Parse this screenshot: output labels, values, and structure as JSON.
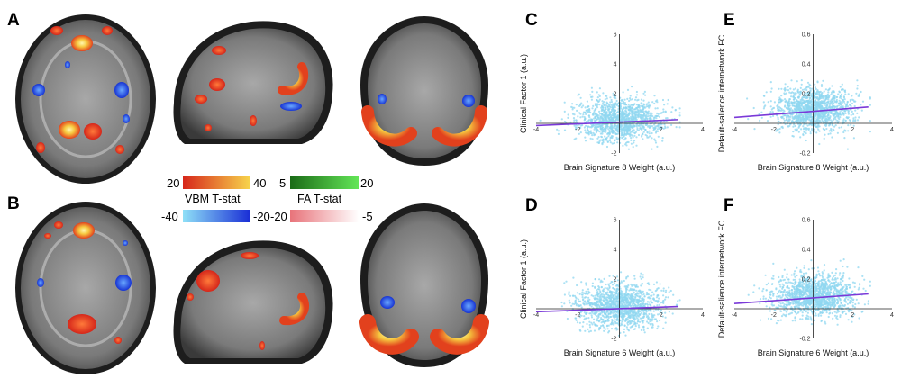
{
  "panels": {
    "A": "A",
    "B": "B",
    "C": "C",
    "D": "D",
    "E": "E",
    "F": "F"
  },
  "colorbars": {
    "vbm": {
      "title": "VBM T-stat",
      "pos_min": "20",
      "pos_max": "40",
      "neg_min": "-40",
      "neg_max": "-20",
      "pos_colors": [
        "#d7261b",
        "#f7d34b"
      ],
      "neg_colors": [
        "#8fe0f7",
        "#1a2fd6"
      ]
    },
    "fa": {
      "title": "FA T-stat",
      "pos_min": "5",
      "pos_max": "20",
      "neg_min": "-20",
      "neg_max": "-5",
      "pos_colors": [
        "#1b6b17",
        "#63e657"
      ],
      "neg_colors": [
        "#e8737a",
        "#ffffff"
      ]
    }
  },
  "chart_data": [
    {
      "id": "C",
      "type": "scatter",
      "xlabel": "Brain Signature 8 Weight (a.u.)",
      "ylabel": "Clinical Factor 1 (a.u.)",
      "xlim": [
        -4,
        4
      ],
      "ylim": [
        -2,
        6
      ],
      "xticks": [
        "-4",
        "-2",
        "2",
        "4"
      ],
      "yticks": [
        "-2",
        "2",
        "4",
        "6"
      ],
      "point_color": "#8fd7f0",
      "fit_color": "#7a39d8",
      "fit": {
        "x": [
          -4,
          2.8
        ],
        "y": [
          -0.15,
          0.25
        ]
      }
    },
    {
      "id": "E",
      "type": "scatter",
      "xlabel": "Brain Signature 8 Weight (a.u.)",
      "ylabel": "Default-salience internetwork FC",
      "xlim": [
        -4,
        4
      ],
      "ylim": [
        -0.2,
        0.6
      ],
      "xticks": [
        "-4",
        "-2",
        "2",
        "4"
      ],
      "yticks": [
        "-0.2",
        "0.2",
        "0.4",
        "0.6"
      ],
      "point_color": "#8fd7f0",
      "fit_color": "#7a39d8",
      "fit": {
        "x": [
          -4,
          2.8
        ],
        "y": [
          0.04,
          0.11
        ]
      }
    },
    {
      "id": "D",
      "type": "scatter",
      "xlabel": "Brain Signature 6 Weight (a.u.)",
      "ylabel": "Clinical Factor 1 (a.u.)",
      "xlim": [
        -4,
        4
      ],
      "ylim": [
        -2,
        6
      ],
      "xticks": [
        "-4",
        "-2",
        "2",
        "4"
      ],
      "yticks": [
        "-2",
        "2",
        "4",
        "6"
      ],
      "point_color": "#8fd7f0",
      "fit_color": "#7a39d8",
      "fit": {
        "x": [
          -4,
          2.8
        ],
        "y": [
          -0.2,
          0.15
        ]
      }
    },
    {
      "id": "F",
      "type": "scatter",
      "xlabel": "Brain Signature 6 Weight (a.u.)",
      "ylabel": "Default-salience internetwork FC",
      "xlim": [
        -4,
        4
      ],
      "ylim": [
        -0.2,
        0.6
      ],
      "xticks": [
        "-4",
        "-2",
        "2",
        "4"
      ],
      "yticks": [
        "-0.2",
        "0.2",
        "0.4",
        "0.6"
      ],
      "point_color": "#8fd7f0",
      "fit_color": "#7a39d8",
      "fit": {
        "x": [
          -4,
          2.8
        ],
        "y": [
          0.035,
          0.1
        ]
      }
    }
  ]
}
